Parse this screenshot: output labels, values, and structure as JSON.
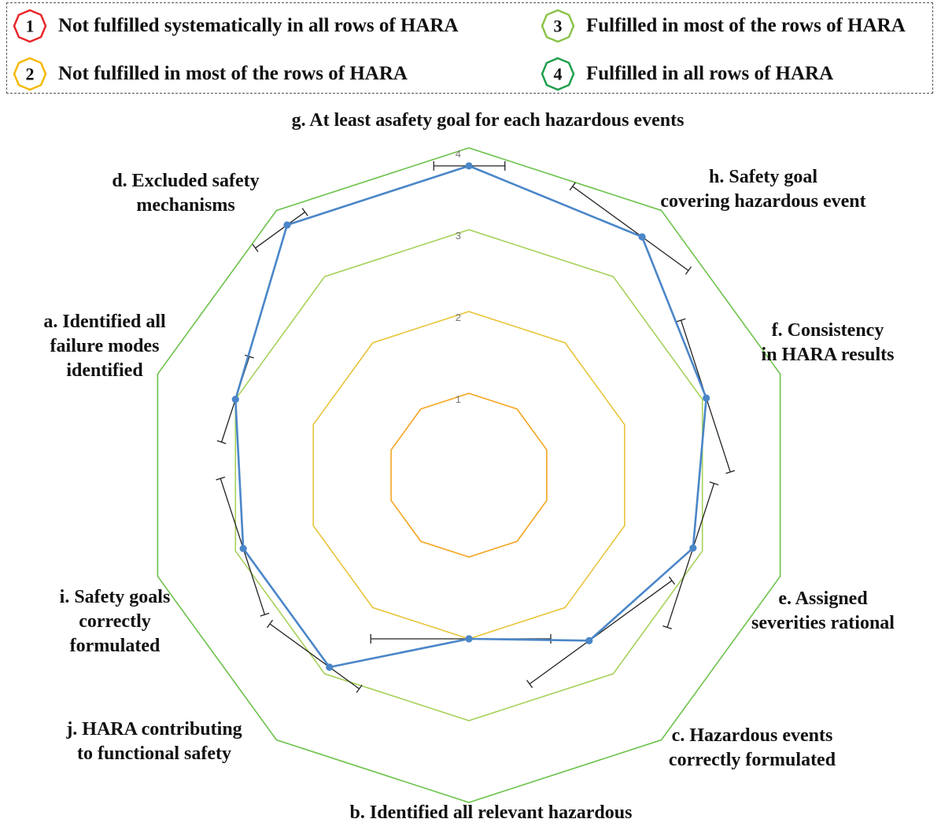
{
  "legend": {
    "items": [
      {
        "number": "1",
        "label": "Not fulfilled systematically in all rows of HARA",
        "color": "#e8262a"
      },
      {
        "number": "2",
        "label": "Not fulfilled in most of the rows of HARA",
        "color": "#f5b800"
      },
      {
        "number": "3",
        "label": "Fulfilled in most of the rows of HARA",
        "color": "#8bc34a"
      },
      {
        "number": "4",
        "label": "Fulfilled in all rows of HARA",
        "color": "#1e9e4a"
      }
    ]
  },
  "chart_data": {
    "type": "radar",
    "title": "",
    "categories": [
      "g. At least asafety goal for each hazardous events",
      "h. Safety goal covering hazardous event",
      "f. Consistency in HARA results",
      "e. Assigned severities rational",
      "c. Hazardous events correctly formulated",
      "b. Identified all relevant hazardous",
      "j. HARA contributing to functional safety",
      "i. Safety goals correctly formulated",
      "a. Identified all failure modes identified",
      "d. Excluded safety mechanisms"
    ],
    "rlim": [
      0,
      4
    ],
    "ticks": [
      "1",
      "2",
      "3",
      "4"
    ],
    "ring_colors": [
      "#f5a623",
      "#e8c53a",
      "#a7d15a",
      "#6cc24a"
    ],
    "series": [
      {
        "name": "",
        "color": "#4a86c8",
        "values": [
          3.78,
          3.6,
          3.05,
          2.88,
          2.5,
          2.0,
          2.9,
          2.9,
          3.0,
          3.78
        ],
        "error_low": [
          3.35,
          2.55,
          2.05,
          2.05,
          1.25,
          1.0,
          2.45,
          2.05,
          2.45,
          3.3
        ],
        "error_high": [
          4.22,
          4.3,
          4.0,
          3.9,
          3.4,
          3.2,
          3.8,
          3.8,
          3.55,
          4.05
        ]
      }
    ]
  }
}
